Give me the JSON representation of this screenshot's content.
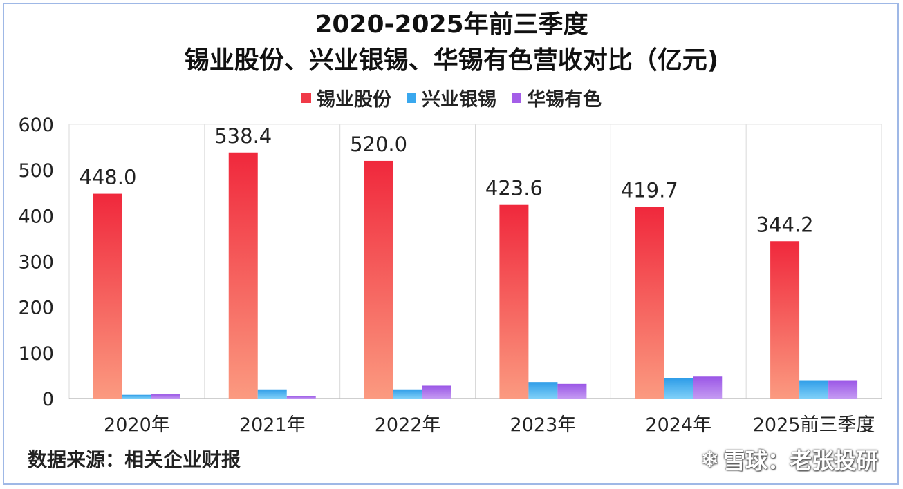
{
  "chart_data": {
    "type": "bar",
    "title_line1": "2020-2025年前三季度",
    "title_line2": "锡业股份、兴业银锡、华锡有色营收对比（亿元)",
    "categories": [
      "2020年",
      "2021年",
      "2022年",
      "2023年",
      "2024年",
      "2025前三季度"
    ],
    "series": [
      {
        "name": "锡业股份",
        "color": "#f03a48",
        "values": [
          448.0,
          538.4,
          520.0,
          423.6,
          419.7,
          344.2
        ],
        "labels": [
          "448.0",
          "538.4",
          "520.0",
          "423.6",
          "419.7",
          "344.2"
        ]
      },
      {
        "name": "兴业银锡",
        "color": "#3aa8ee",
        "values": [
          8,
          20,
          20,
          36,
          44,
          40
        ]
      },
      {
        "name": "华锡有色",
        "color": "#a45ee8",
        "values": [
          9,
          5,
          28,
          32,
          48,
          40
        ]
      }
    ],
    "yticks": [
      0,
      100,
      200,
      300,
      400,
      500,
      600
    ],
    "ytick_labels": [
      "0",
      "100",
      "200",
      "300",
      "400",
      "500",
      "600"
    ],
    "ylim": [
      0,
      600
    ],
    "legend": "top-center",
    "grid": "vertical"
  },
  "footer": {
    "source": "数据来源：相关企业财报",
    "watermark": "雪球：老张投研"
  }
}
